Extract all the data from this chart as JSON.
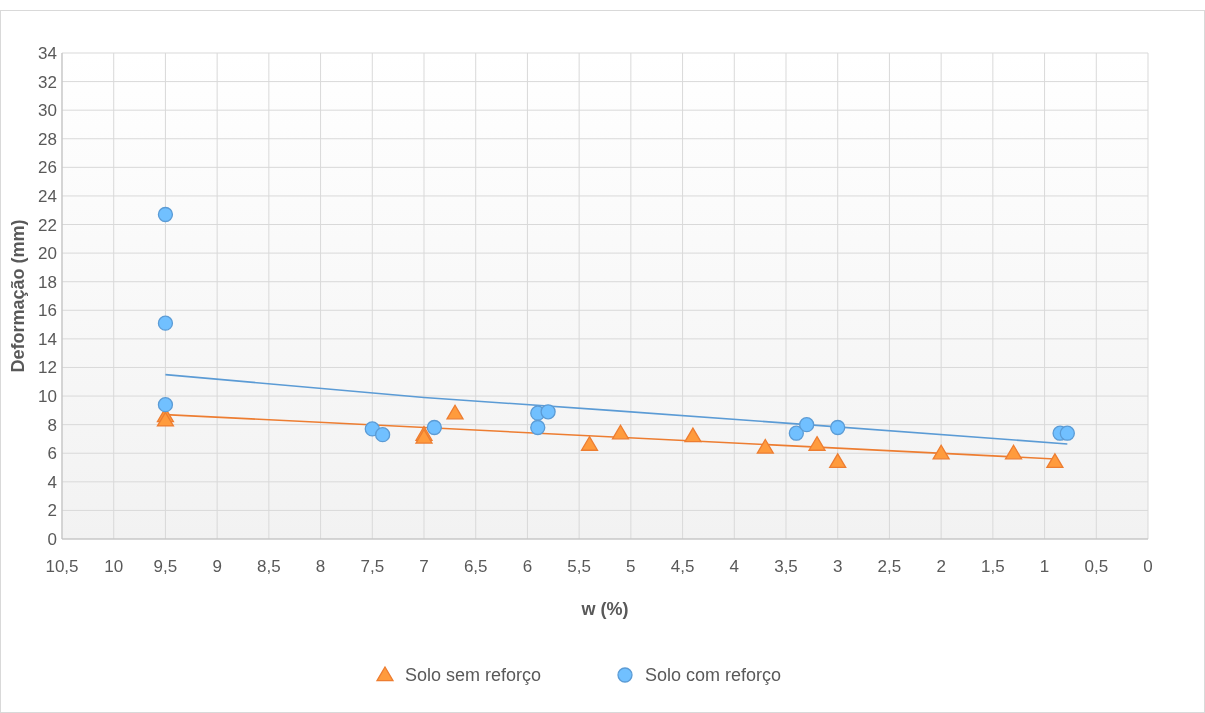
{
  "chart_data": {
    "type": "scatter",
    "xlabel": "w (%)",
    "ylabel": "Deformação (mm)",
    "xlim": [
      10.5,
      0
    ],
    "xticks": [
      {
        "value": 10.5,
        "label": "10,5"
      },
      10,
      {
        "value": 9.5,
        "label": "9,5"
      },
      9,
      {
        "value": 8.5,
        "label": "8,5"
      },
      8,
      {
        "value": 7.5,
        "label": "7,5"
      },
      7,
      {
        "value": 6.5,
        "label": "6,5"
      },
      6,
      {
        "value": 5.5,
        "label": "5,5"
      },
      5,
      {
        "value": 4.5,
        "label": "4,5"
      },
      4,
      {
        "value": 3.5,
        "label": "3,5"
      },
      3,
      {
        "value": 2.5,
        "label": "2,5"
      },
      2,
      {
        "value": 1.5,
        "label": "1,5"
      },
      1,
      {
        "value": 0.5,
        "label": "0,5"
      },
      0
    ],
    "ylim": [
      0,
      34
    ],
    "yticks": [
      0,
      2,
      4,
      6,
      8,
      10,
      12,
      14,
      16,
      18,
      20,
      22,
      24,
      26,
      28,
      30,
      32,
      34
    ],
    "grid": true,
    "legend": "bottom",
    "series": [
      {
        "name": "Solo sem reforço",
        "marker": "triangle",
        "color": "#ed7d31",
        "x": [
          9.5,
          9.5,
          7.0,
          7.0,
          6.7,
          5.4,
          5.1,
          4.4,
          3.7,
          3.2,
          3.0,
          2.0,
          1.3,
          0.9
        ],
        "values": [
          8.6,
          8.3,
          7.3,
          7.1,
          8.8,
          6.6,
          7.4,
          7.2,
          6.4,
          6.6,
          5.4,
          6.0,
          6.0,
          5.4
        ]
      },
      {
        "name": "Solo com reforço",
        "marker": "circle",
        "color": "#5b9bd5",
        "x": [
          9.5,
          9.5,
          9.5,
          7.5,
          7.4,
          6.9,
          5.9,
          5.8,
          5.9,
          3.4,
          3.3,
          3.0,
          0.85,
          0.78
        ],
        "values": [
          22.7,
          15.1,
          9.4,
          7.7,
          7.3,
          7.8,
          8.8,
          8.9,
          7.8,
          7.4,
          8.0,
          7.8,
          7.4,
          7.4
        ]
      },
      {
        "type": "line",
        "marker": "none",
        "color": "#ed7d31",
        "x": [
          9.5,
          0.9
        ],
        "values": [
          8.7,
          5.6
        ]
      },
      {
        "type": "line",
        "marker": "none",
        "color": "#5b9bd5",
        "x": [
          9.5,
          7.0,
          5.2,
          3.3,
          0.78
        ],
        "values": [
          11.5,
          9.9,
          9.0,
          8.0,
          6.65
        ]
      }
    ]
  }
}
